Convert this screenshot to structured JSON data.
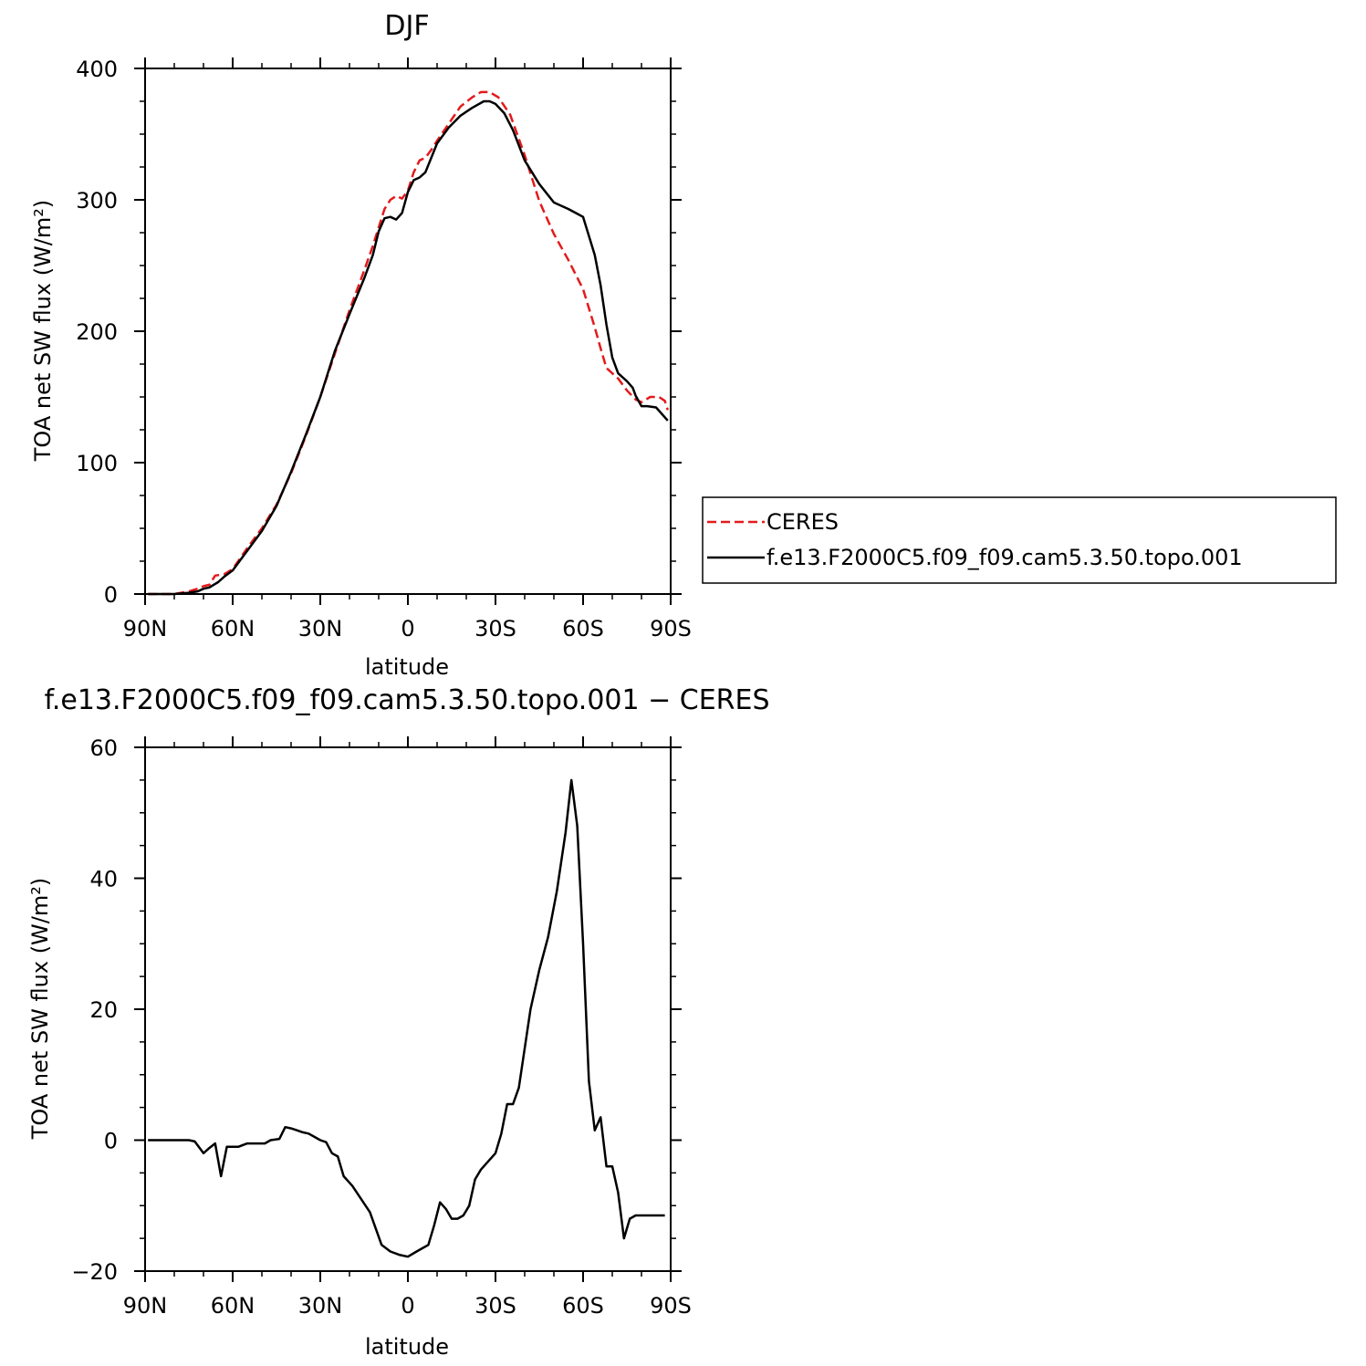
{
  "chart_data": [
    {
      "type": "line",
      "title": "DJF",
      "xlabel": "latitude",
      "ylabel": "TOA net SW flux (W/m²)",
      "xlim": [
        90,
        -90
      ],
      "ylim": [
        0,
        400
      ],
      "xticks": [
        {
          "value": 90,
          "label": "90N"
        },
        {
          "value": 60,
          "label": "60N"
        },
        {
          "value": 30,
          "label": "30N"
        },
        {
          "value": 0,
          "label": "0"
        },
        {
          "value": -30,
          "label": "30S"
        },
        {
          "value": -60,
          "label": "60S"
        },
        {
          "value": -90,
          "label": "90S"
        }
      ],
      "yticks": [
        {
          "value": 0,
          "label": "0"
        },
        {
          "value": 100,
          "label": "100"
        },
        {
          "value": 200,
          "label": "200"
        },
        {
          "value": 300,
          "label": "300"
        },
        {
          "value": 400,
          "label": "400"
        }
      ],
      "legend": "right",
      "series": [
        {
          "name": "CERES",
          "color": "#e41a1c",
          "dash": "dashed",
          "x": [
            89,
            80,
            75,
            72,
            70,
            68,
            66,
            63,
            60,
            55,
            50,
            45,
            40,
            35,
            30,
            25,
            20,
            15,
            12,
            10,
            8,
            6,
            4,
            2,
            0,
            -2,
            -4,
            -6,
            -8,
            -10,
            -14,
            -18,
            -22,
            -25,
            -28,
            -31,
            -35,
            -40,
            -45,
            -50,
            -55,
            -60,
            -64,
            -66,
            -68,
            -70,
            -72,
            -75,
            -78,
            -80,
            -83,
            -86,
            -88,
            -89
          ],
          "y": [
            0,
            0,
            2,
            4,
            6,
            7,
            14,
            15,
            19,
            35,
            50,
            68,
            92,
            120,
            150,
            183,
            216,
            246,
            265,
            279,
            293,
            300,
            303,
            301,
            307,
            321,
            330,
            332,
            338,
            345,
            358,
            371,
            378,
            382,
            382,
            378,
            365,
            334,
            299,
            274,
            254,
            232,
            203,
            187,
            172,
            168,
            164,
            155,
            148,
            146,
            150,
            150,
            147,
            140
          ]
        },
        {
          "name": "f.e13.F2000C5.f09_f09.cam5.3.50.topo.001",
          "color": "#000000",
          "dash": "solid",
          "x": [
            89,
            80,
            75,
            72,
            70,
            68,
            65,
            63,
            60,
            55,
            50,
            45,
            40,
            35,
            30,
            25,
            20,
            15,
            12,
            10,
            8,
            6,
            4,
            2,
            0,
            -2,
            -4,
            -6,
            -10,
            -14,
            -18,
            -22,
            -26,
            -28,
            -30,
            -33,
            -36,
            -40,
            -45,
            -50,
            -55,
            -60,
            -64,
            -66,
            -68,
            -70,
            -72,
            -75,
            -77,
            -78,
            -80,
            -82,
            -85,
            -89
          ],
          "y": [
            0,
            0,
            1,
            2,
            4,
            5,
            9,
            13,
            18,
            33,
            48,
            67,
            93,
            121,
            150,
            185,
            213,
            240,
            258,
            276,
            286,
            287,
            285,
            290,
            306,
            315,
            317,
            321,
            343,
            355,
            364,
            370,
            375,
            375,
            373,
            366,
            353,
            330,
            312,
            298,
            293,
            287,
            258,
            235,
            205,
            180,
            168,
            162,
            157,
            151,
            143,
            143,
            142,
            132
          ]
        }
      ]
    },
    {
      "type": "line",
      "title": "f.e13.F2000C5.f09_f09.cam5.3.50.topo.001  −  CERES",
      "xlabel": "latitude",
      "ylabel": "TOA net SW flux (W/m²)",
      "xlim": [
        90,
        -90
      ],
      "ylim": [
        -20,
        60
      ],
      "xticks": [
        {
          "value": 90,
          "label": "90N"
        },
        {
          "value": 60,
          "label": "60N"
        },
        {
          "value": 30,
          "label": "30N"
        },
        {
          "value": 0,
          "label": "0"
        },
        {
          "value": -30,
          "label": "30S"
        },
        {
          "value": -60,
          "label": "60S"
        },
        {
          "value": -90,
          "label": "90S"
        }
      ],
      "yticks": [
        {
          "value": -20,
          "label": "−20"
        },
        {
          "value": 0,
          "label": "0"
        },
        {
          "value": 20,
          "label": "20"
        },
        {
          "value": 40,
          "label": "40"
        },
        {
          "value": 60,
          "label": "60"
        }
      ],
      "series": [
        {
          "color": "#000000",
          "dash": "solid",
          "x": [
            89,
            75,
            73,
            70,
            68,
            66,
            64,
            62,
            60,
            58,
            55,
            53,
            51,
            49,
            47,
            44,
            42,
            40,
            38,
            36,
            34,
            32,
            30,
            28,
            26,
            24,
            22,
            19,
            16,
            13,
            9,
            6,
            3,
            0,
            -3,
            -5,
            -7,
            -9,
            -11,
            -13,
            -15,
            -17,
            -19,
            -21,
            -23,
            -25,
            -27,
            -30,
            -32,
            -34,
            -36,
            -38,
            -40,
            -42,
            -45,
            -48,
            -51,
            -54,
            -56,
            -58,
            -60,
            -62,
            -64,
            -66,
            -68,
            -70,
            -72,
            -74,
            -76,
            -78,
            -80,
            -82,
            -84,
            -86,
            -88
          ],
          "y": [
            0,
            0,
            -0.2,
            -2,
            -1.2,
            -0.5,
            -5.5,
            -1,
            -1,
            -1,
            -0.5,
            -0.5,
            -0.5,
            -0.5,
            0,
            0.2,
            2,
            1.8,
            1.5,
            1.2,
            1,
            0.5,
            0,
            -0.3,
            -2,
            -2.5,
            -5.5,
            -7,
            -9,
            -11,
            -16,
            -17,
            -17.5,
            -17.8,
            -17,
            -16.5,
            -16,
            -13,
            -9.5,
            -10.5,
            -12,
            -12,
            -11.5,
            -10,
            -6,
            -4.5,
            -3.5,
            -2,
            1,
            5.5,
            5.5,
            8,
            14,
            20,
            26,
            31,
            38,
            47,
            55,
            48,
            30,
            9,
            1.5,
            3.5,
            -4,
            -4,
            -8,
            -15,
            -12,
            -11.5,
            -11.5,
            -11.5,
            -11.5,
            -11.5,
            -11.5
          ]
        }
      ]
    }
  ]
}
